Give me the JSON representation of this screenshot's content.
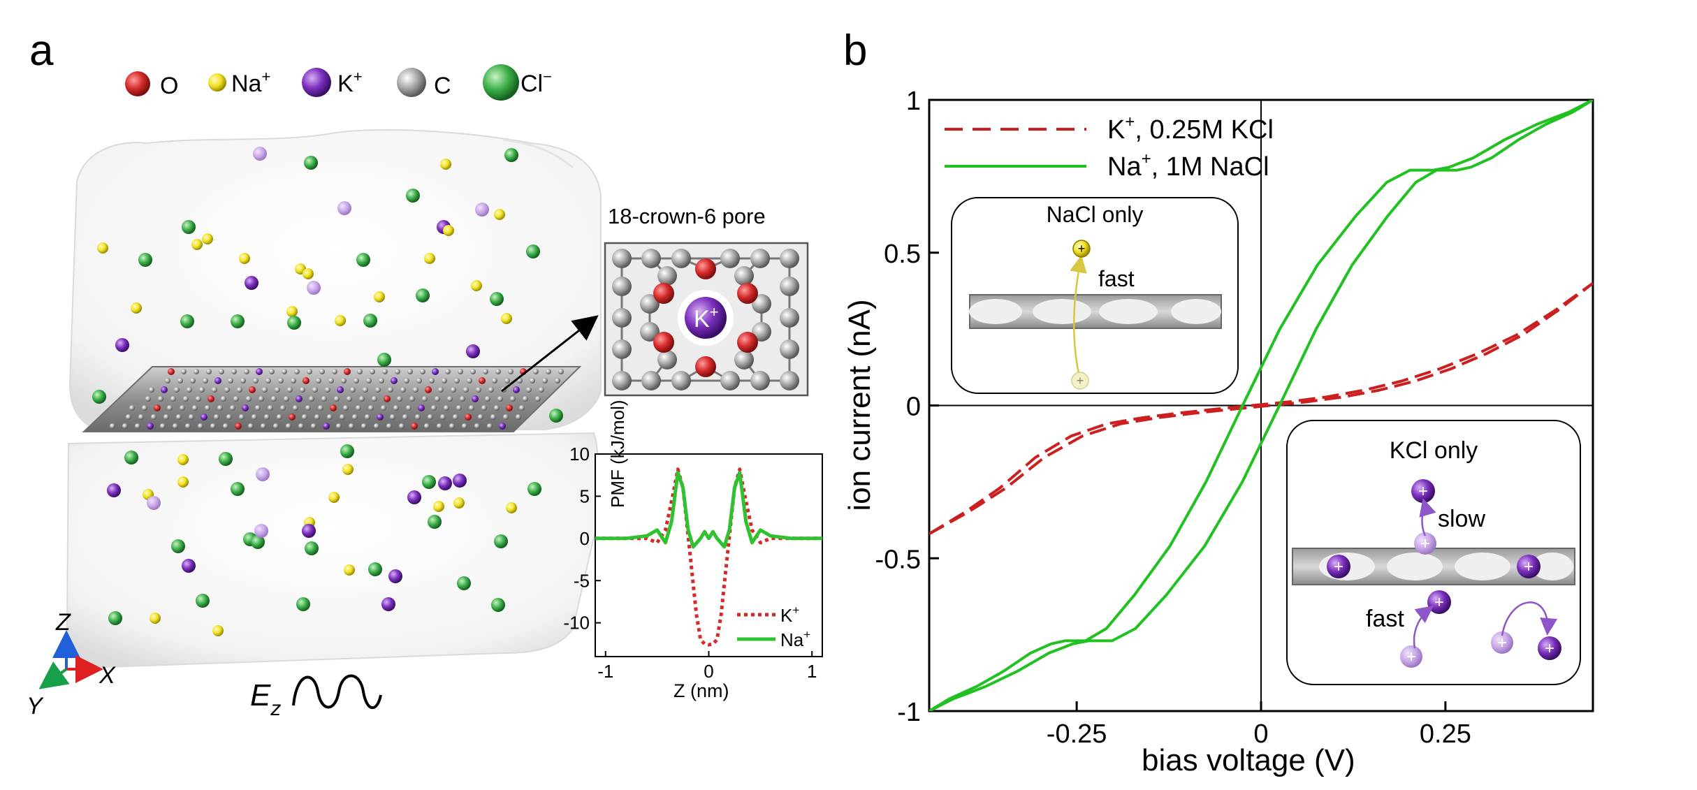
{
  "panel_a": {
    "label": "a",
    "legend": [
      {
        "symbol": "O",
        "color": "#d42a2a",
        "size": "large"
      },
      {
        "symbol": "Na",
        "sup": "+",
        "color": "#f2e227",
        "size": "small"
      },
      {
        "symbol": "K",
        "sup": "+",
        "color": "#7b2fbe",
        "size": "large"
      },
      {
        "symbol": "C",
        "color": "#9a9a9a",
        "size": "large"
      },
      {
        "symbol": "Cl",
        "sup": "−",
        "color": "#3db04a",
        "size": "xlarge"
      }
    ],
    "inset_title": "18-crown-6 pore",
    "pore_ion": "K",
    "pore_ion_sup": "+",
    "axes_labels": {
      "z": "Z",
      "x": "X",
      "y": "Y"
    },
    "field_label": "E",
    "field_sub": "z",
    "colors": {
      "oxygen": "#d42a2a",
      "carbon": "#9a9a9a",
      "potassium": "#7b2fbe",
      "sodium": "#f2e227",
      "chloride": "#3db04a"
    }
  },
  "panel_b": {
    "label": "b",
    "inset_nacl_title": "NaCl only",
    "inset_nacl_fast": "fast",
    "inset_kcl_title": "KCl only",
    "inset_kcl_slow": "slow",
    "inset_kcl_fast": "fast"
  },
  "chart_data": [
    {
      "type": "line",
      "xlabel": "Z (nm)",
      "ylabel": "PMF (kJ/mol)",
      "xlim": [
        -1.1,
        1.1
      ],
      "ylim": [
        -14,
        10
      ],
      "xticks": [
        -1,
        0,
        1
      ],
      "yticks": [
        10,
        5,
        0,
        -5,
        -10
      ],
      "legend_position": "bottom-right",
      "series": [
        {
          "name": "K",
          "name_sup": "+",
          "color": "#d42a2a",
          "dash": "dotted",
          "x": [
            -1.1,
            -0.8,
            -0.6,
            -0.5,
            -0.42,
            -0.35,
            -0.3,
            -0.25,
            -0.18,
            -0.12,
            -0.08,
            -0.04,
            0,
            0.04,
            0.08,
            0.12,
            0.18,
            0.25,
            0.3,
            0.35,
            0.42,
            0.5,
            0.6,
            0.8,
            1.1
          ],
          "y": [
            0,
            0,
            0,
            -0.5,
            1,
            5,
            8.2,
            6,
            -2,
            -9,
            -12,
            -12.5,
            -12.6,
            -12.5,
            -12,
            -9,
            -2,
            6,
            8.2,
            5,
            1,
            -0.5,
            0,
            0,
            0
          ]
        },
        {
          "name": "Na",
          "name_sup": "+",
          "color": "#2fc12f",
          "dash": "solid",
          "x": [
            -1.1,
            -0.8,
            -0.6,
            -0.5,
            -0.42,
            -0.36,
            -0.3,
            -0.25,
            -0.2,
            -0.15,
            -0.08,
            -0.04,
            0,
            0.04,
            0.08,
            0.15,
            0.2,
            0.25,
            0.3,
            0.36,
            0.42,
            0.5,
            0.6,
            0.8,
            1.1
          ],
          "y": [
            0,
            0,
            0.3,
            1,
            -0.5,
            2,
            7.8,
            6,
            1,
            -1,
            0,
            0.8,
            0,
            0.8,
            0,
            -1,
            1,
            6,
            7.8,
            2,
            -0.5,
            1,
            0.3,
            0,
            0
          ]
        }
      ]
    },
    {
      "type": "line",
      "xlabel": "bias voltage (V)",
      "ylabel": "ion current (nA)",
      "xlim": [
        -0.45,
        0.45
      ],
      "ylim": [
        -1,
        1
      ],
      "xticks": [
        -0.25,
        0,
        0.25
      ],
      "yticks": [
        1,
        0.5,
        0,
        -0.5,
        -1
      ],
      "legend_position": "top-left",
      "series": [
        {
          "name": "K",
          "name_sup": "+",
          "name_rest": ", 0.25M KCl",
          "color": "#cc1f1f",
          "dash": "dashed",
          "x": [
            -0.45,
            -0.4,
            -0.35,
            -0.3,
            -0.25,
            -0.2,
            -0.15,
            -0.1,
            -0.05,
            0,
            0.05,
            0.1,
            0.15,
            0.2,
            0.25,
            0.3,
            0.35,
            0.4,
            0.45
          ],
          "y": [
            -0.42,
            -0.35,
            -0.27,
            -0.17,
            -0.1,
            -0.06,
            -0.04,
            -0.025,
            -0.012,
            0,
            0.012,
            0.028,
            0.05,
            0.08,
            0.12,
            0.17,
            0.23,
            0.31,
            0.4
          ]
        },
        {
          "name": "Na",
          "name_sup": "+",
          "name_rest": ", 1M NaCl",
          "color": "#22c122",
          "dash": "solid",
          "x": [
            -0.45,
            -0.42,
            -0.38,
            -0.34,
            -0.3,
            -0.27,
            -0.25,
            -0.22,
            -0.19,
            -0.15,
            -0.1,
            -0.05,
            0,
            0.05,
            0.1,
            0.15,
            0.19,
            0.22,
            0.25,
            0.27,
            0.3,
            0.34,
            0.38,
            0.42,
            0.45
          ],
          "y": [
            -1.0,
            -0.96,
            -0.92,
            -0.87,
            -0.81,
            -0.78,
            -0.77,
            -0.77,
            -0.73,
            -0.62,
            -0.46,
            -0.25,
            0,
            0.25,
            0.46,
            0.62,
            0.73,
            0.77,
            0.77,
            0.78,
            0.81,
            0.87,
            0.92,
            0.96,
            1.0
          ]
        }
      ]
    }
  ]
}
